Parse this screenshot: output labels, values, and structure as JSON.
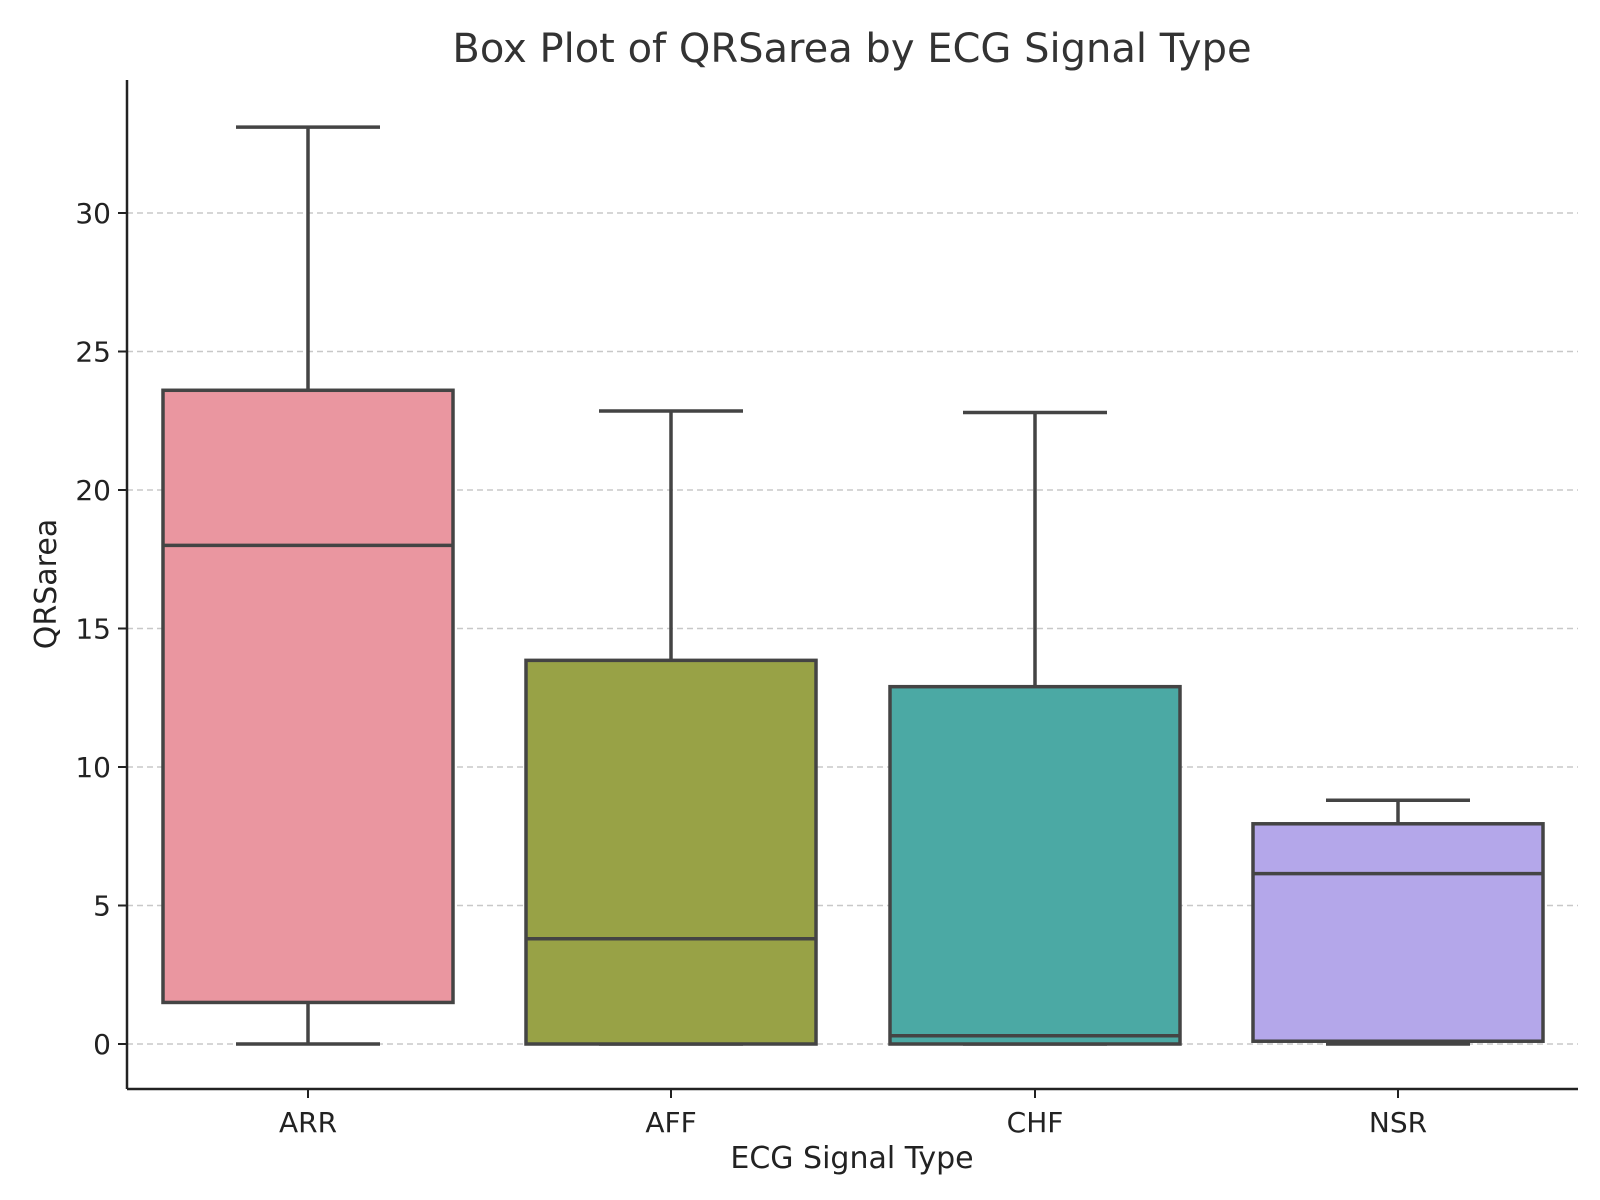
{
  "chart_data": {
    "type": "box",
    "title": "Box Plot of QRSarea by ECG Signal Type",
    "xlabel": "ECG Signal Type",
    "ylabel": "QRSarea",
    "ylim": [
      -1.6,
      34.5
    ],
    "yticks": [
      "0",
      "5",
      "10",
      "15",
      "20",
      "25",
      "30"
    ],
    "grid": "horizontal dashed",
    "categories": [
      "ARR",
      "AFF",
      "CHF",
      "NSR"
    ],
    "boxes": [
      {
        "category": "ARR",
        "whisker_low": 0.0,
        "q1": 1.5,
        "median": 18.0,
        "q3": 23.6,
        "whisker_high": 33.1,
        "color": "#ea96a0"
      },
      {
        "category": "AFF",
        "whisker_low": 0.0,
        "q1": 0.0,
        "median": 3.8,
        "q3": 13.85,
        "whisker_high": 22.85,
        "color": "#98a246"
      },
      {
        "category": "CHF",
        "whisker_low": 0.0,
        "q1": 0.0,
        "median": 0.3,
        "q3": 12.9,
        "whisker_high": 22.8,
        "color": "#4ba9a4"
      },
      {
        "category": "NSR",
        "whisker_low": 0.0,
        "q1": 0.1,
        "median": 6.15,
        "q3": 7.95,
        "whisker_high": 8.8,
        "color": "#b4a7ea"
      }
    ]
  }
}
